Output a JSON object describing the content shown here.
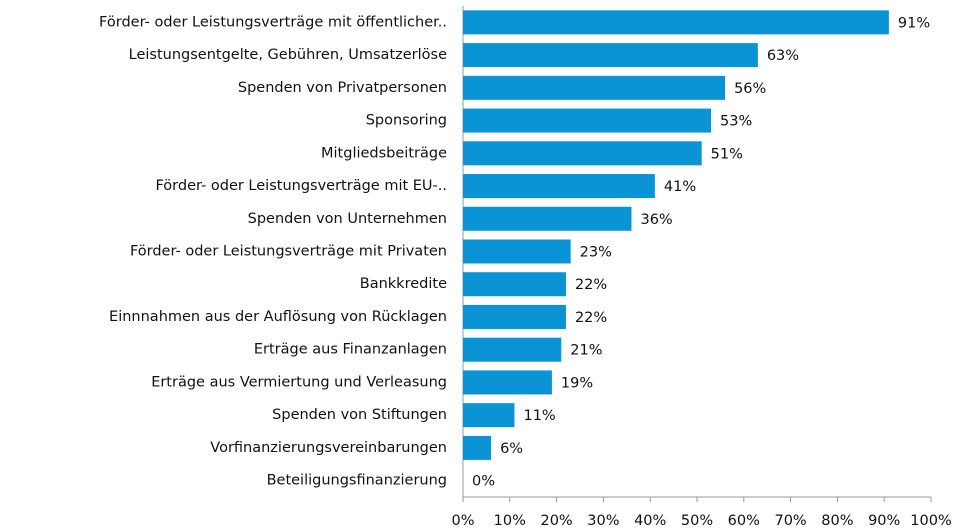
{
  "chart_data": {
    "type": "bar",
    "orientation": "horizontal",
    "categories": [
      "Förder- oder Leistungsverträge mit öffentlicher..",
      "Leistungsentgelte, Gebühren, Umsatzerlöse",
      "Spenden von Privatpersonen",
      "Sponsoring",
      "Mitgliedsbeiträge",
      "Förder- oder Leistungsverträge mit EU-..",
      "Spenden von Unternehmen",
      "Förder- oder Leistungsverträge mit Privaten",
      "Bankkredite",
      "Einnnahmen aus der Auflösung von Rücklagen",
      "Erträge aus Finanzanlagen",
      "Erträge aus Vermiertung und Verleasung",
      "Spenden von Stiftungen",
      "Vorfinanzierungsvereinbarungen",
      "Beteiligungsfinanzierung"
    ],
    "values": [
      91,
      63,
      56,
      53,
      51,
      41,
      36,
      23,
      22,
      22,
      21,
      19,
      11,
      6,
      0
    ],
    "value_labels": [
      "91%",
      "63%",
      "56%",
      "53%",
      "51%",
      "41%",
      "36%",
      "23%",
      "22%",
      "22%",
      "21%",
      "19%",
      "11%",
      "6%",
      "0%"
    ],
    "color": "#0a94d6",
    "xlim": [
      0,
      100
    ],
    "xticks": [
      {
        "value": 0,
        "label": "0%"
      },
      {
        "value": 10,
        "label": "10%"
      },
      {
        "value": 20,
        "label": "20%"
      },
      {
        "value": 30,
        "label": "30%"
      },
      {
        "value": 40,
        "label": "40%"
      },
      {
        "value": 50,
        "label": "50%"
      },
      {
        "value": 60,
        "label": "60%"
      },
      {
        "value": 70,
        "label": "70%"
      },
      {
        "value": 80,
        "label": "80%"
      },
      {
        "value": 90,
        "label": "90%"
      },
      {
        "value": 100,
        "label": "100%"
      }
    ],
    "grid": false
  }
}
